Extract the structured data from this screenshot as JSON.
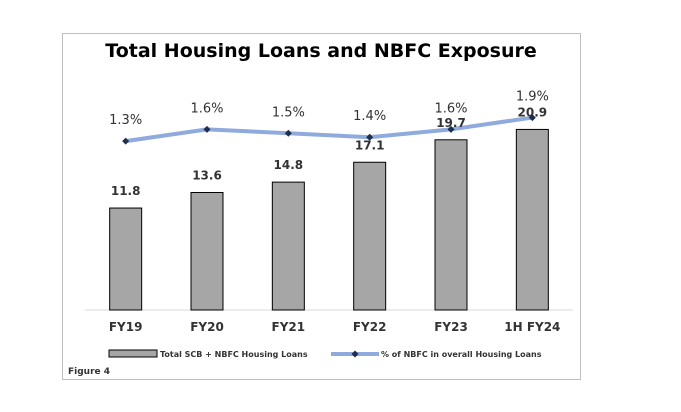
{
  "figure_label": "Figure 4",
  "chart_data": {
    "type": "bar",
    "title": "Total Housing Loans and NBFC Exposure",
    "categories": [
      "FY19",
      "FY20",
      "FY21",
      "FY22",
      "FY23",
      "1H FY24"
    ],
    "series": [
      {
        "name": "Total SCB + NBFC Housing Loans",
        "type": "bar",
        "values": [
          11.8,
          13.6,
          14.8,
          17.1,
          19.7,
          20.9
        ],
        "labels": [
          "11.8",
          "13.6",
          "14.8",
          "17.1",
          "19.7",
          "20.9"
        ],
        "color": "#a6a6a6",
        "edge_color": "#000000"
      },
      {
        "name": "% of NBFC in overall Housing Loans",
        "type": "line",
        "values": [
          1.3,
          1.6,
          1.5,
          1.4,
          1.6,
          1.9
        ],
        "labels": [
          "1.3%",
          "1.6%",
          "1.5%",
          "1.4%",
          "1.6%",
          "1.9%"
        ],
        "color": "#8faadc",
        "marker_color": "#1f2d4f",
        "secondary_axis": true
      }
    ],
    "legend_position": "bottom",
    "grid": false,
    "ylim_bars": [
      0,
      25
    ],
    "ylim_line": [
      -3,
      2.5
    ]
  }
}
